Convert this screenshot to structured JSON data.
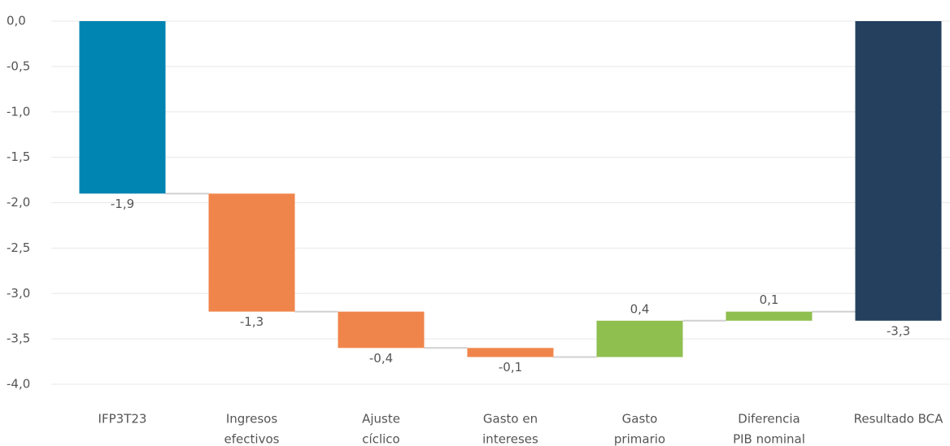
{
  "chart_data": {
    "type": "waterfall",
    "categories": [
      [
        "IFP3T23"
      ],
      [
        "Ingresos",
        "efectivos"
      ],
      [
        "Ajuste",
        "cíclico"
      ],
      [
        "Gasto en",
        "intereses"
      ],
      [
        "Gasto",
        "primario"
      ],
      [
        "Diferencia",
        "PIB nominal"
      ],
      [
        "Resultado BCA"
      ]
    ],
    "values": [
      -1.9,
      -1.3,
      -0.4,
      -0.1,
      0.4,
      0.1,
      -3.3
    ],
    "value_labels": [
      "-1,9",
      "-1,3",
      "-0,4",
      "-0,1",
      "0,4",
      "0,1",
      "-3,3"
    ],
    "colors": [
      "#0085b2",
      "#f0854b",
      "#f0854b",
      "#f0854b",
      "#8fbf4f",
      "#8fbf4f",
      "#253f5f"
    ],
    "ylim": [
      -4,
      0
    ],
    "yticks": [
      {
        "value": 0,
        "label": "0,0"
      },
      {
        "value": -0.5,
        "label": "-0,5"
      },
      {
        "value": -1,
        "label": "-1,0"
      },
      {
        "value": -1.5,
        "label": "-1,5"
      },
      {
        "value": -2,
        "label": "-2,0"
      },
      {
        "value": -2.5,
        "label": "-2,5"
      },
      {
        "value": -3,
        "label": "-3,0"
      },
      {
        "value": -3.5,
        "label": "-3,5"
      },
      {
        "value": -4,
        "label": "-4,0"
      }
    ],
    "grid": true
  }
}
